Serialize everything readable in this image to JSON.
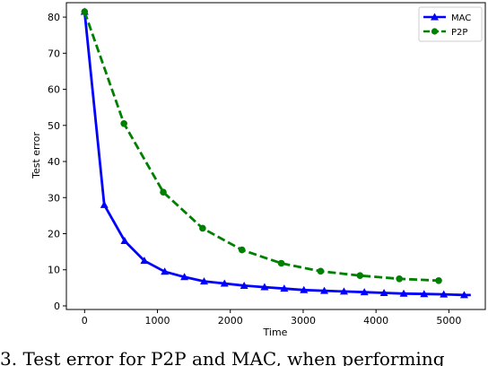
{
  "chart_data": {
    "type": "line",
    "xlabel": "Time",
    "ylabel": "Test error",
    "xlim": [
      -250,
      5500
    ],
    "ylim": [
      -1,
      84
    ],
    "xticks": [
      0,
      1000,
      2000,
      3000,
      4000,
      5000
    ],
    "yticks": [
      0,
      10,
      20,
      30,
      40,
      50,
      60,
      70,
      80
    ],
    "legend_position": "top-right",
    "series": [
      {
        "name": "MAC",
        "color": "#0000ff",
        "line_style": "solid",
        "marker": "triangle",
        "x": [
          0,
          270,
          550,
          820,
          1100,
          1370,
          1640,
          1920,
          2190,
          2470,
          2740,
          3010,
          3290,
          3560,
          3840,
          4110,
          4380,
          4660,
          4930,
          5210
        ],
        "y": [
          81.5,
          28.0,
          18.0,
          12.5,
          9.5,
          8.0,
          6.8,
          6.2,
          5.6,
          5.2,
          4.8,
          4.4,
          4.2,
          4.0,
          3.8,
          3.6,
          3.4,
          3.3,
          3.2,
          3.0
        ],
        "line_x": [
          0,
          5300
        ],
        "line_end_y": 3.0
      },
      {
        "name": "P2P",
        "color": "#008000",
        "line_style": "dashed",
        "marker": "circle",
        "x": [
          0,
          540,
          1080,
          1620,
          2160,
          2700,
          3240,
          3780,
          4320,
          4860
        ],
        "y": [
          81.5,
          50.5,
          31.5,
          21.5,
          15.5,
          11.8,
          9.6,
          8.4,
          7.5,
          7.0
        ]
      }
    ]
  },
  "caption": "3. Test error for P2P and MAC, when performing"
}
